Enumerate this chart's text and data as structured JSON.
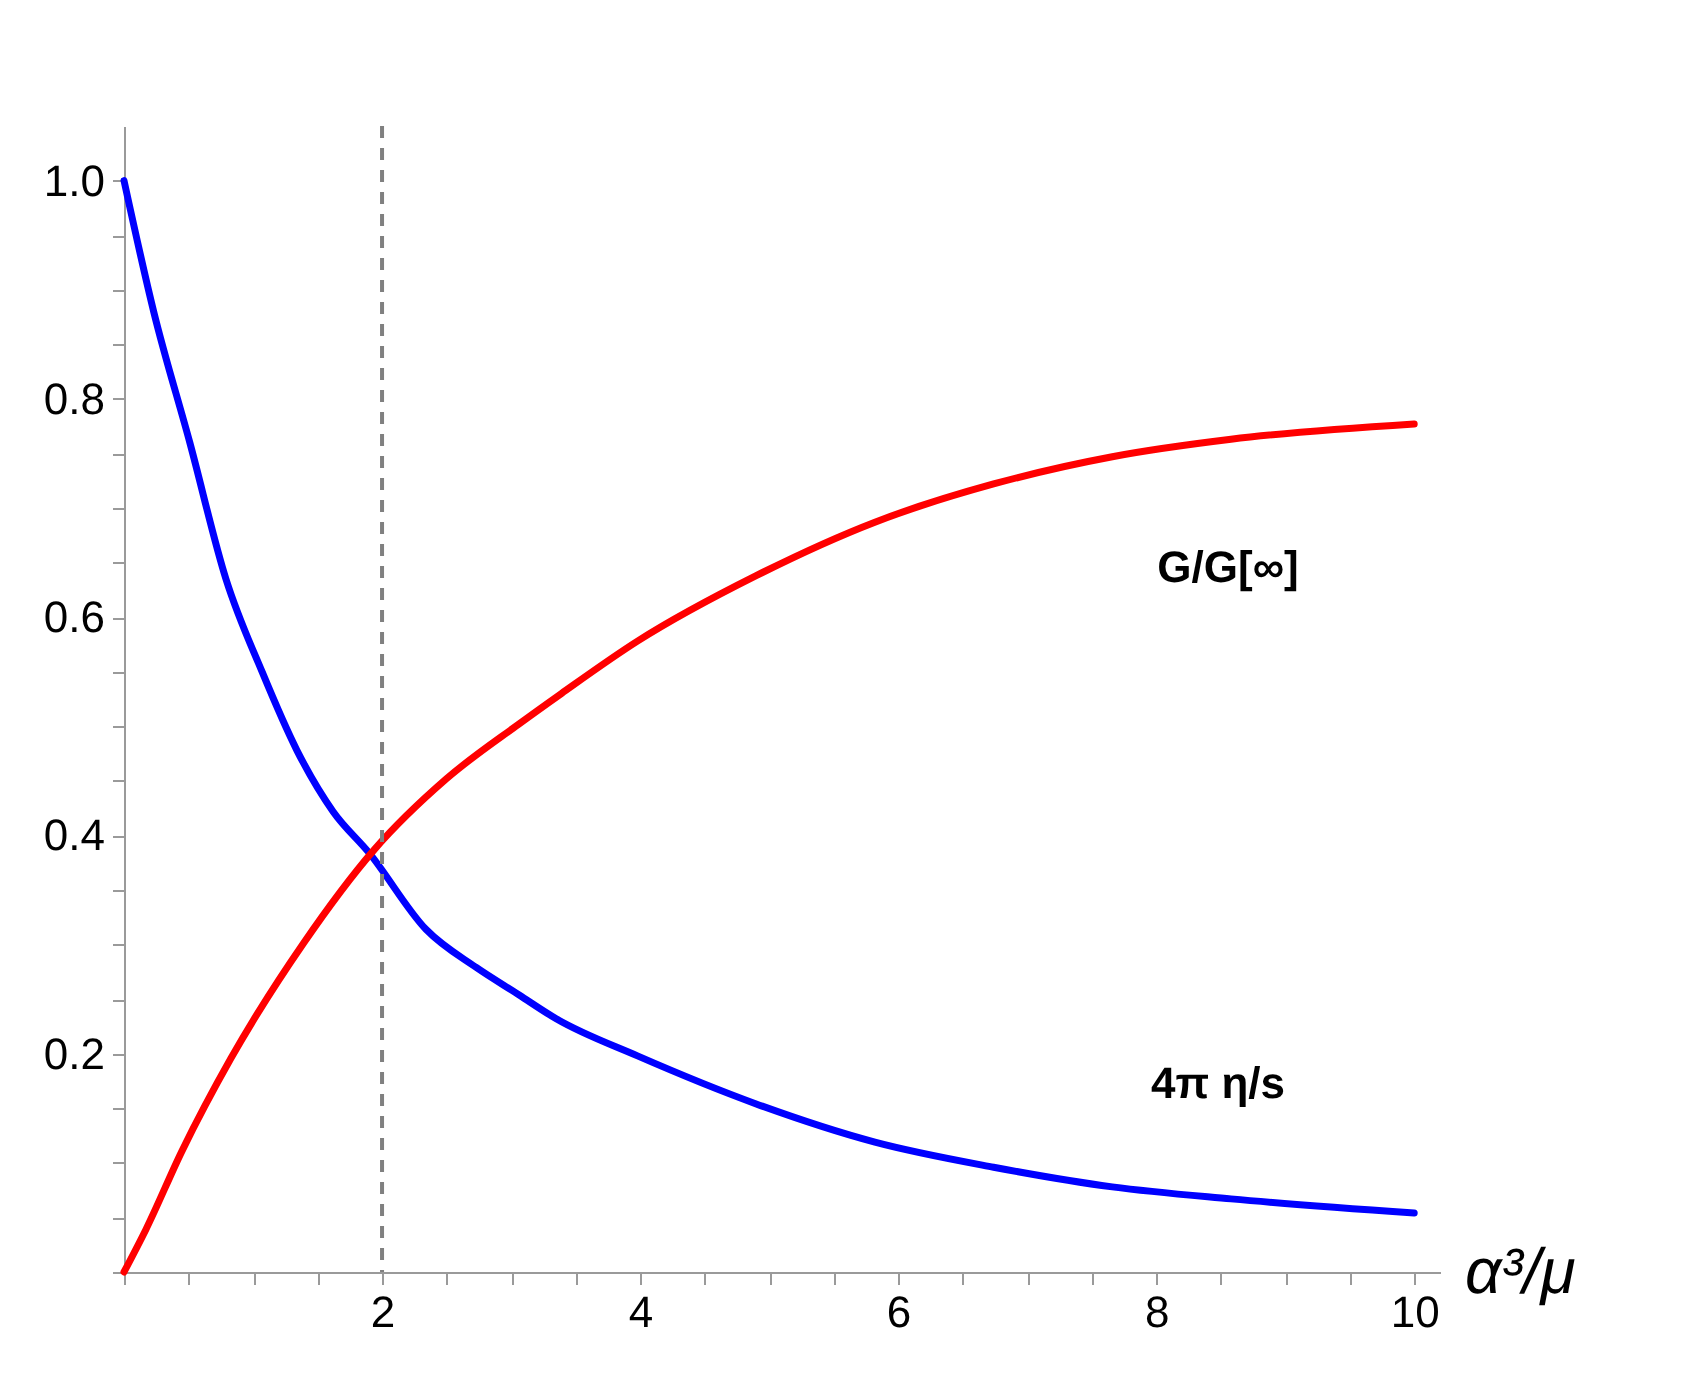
{
  "chart_data": {
    "type": "line",
    "xlabel": "α³/μ",
    "xlim": [
      0,
      10.2
    ],
    "ylim": [
      0,
      1.05
    ],
    "xticks": [
      {
        "value": 0,
        "label": null
      },
      {
        "value": 0.5,
        "label": null
      },
      {
        "value": 1,
        "label": null
      },
      {
        "value": 1.5,
        "label": null
      },
      2,
      {
        "value": 2.5,
        "label": null
      },
      {
        "value": 3,
        "label": null
      },
      {
        "value": 3.5,
        "label": null
      },
      4,
      {
        "value": 4.5,
        "label": null
      },
      {
        "value": 5,
        "label": null
      },
      {
        "value": 5.5,
        "label": null
      },
      6,
      {
        "value": 6.5,
        "label": null
      },
      {
        "value": 7,
        "label": null
      },
      {
        "value": 7.5,
        "label": null
      },
      8,
      {
        "value": 8.5,
        "label": null
      },
      {
        "value": 9,
        "label": null
      },
      {
        "value": 9.5,
        "label": null
      },
      10
    ],
    "yticks": [
      {
        "value": 0,
        "label": null
      },
      {
        "value": 0.05,
        "label": null
      },
      {
        "value": 0.1,
        "label": null
      },
      {
        "value": 0.15,
        "label": null
      },
      0.2,
      {
        "value": 0.25,
        "label": null
      },
      {
        "value": 0.3,
        "label": null
      },
      {
        "value": 0.35,
        "label": null
      },
      0.4,
      {
        "value": 0.45,
        "label": null
      },
      {
        "value": 0.5,
        "label": null
      },
      {
        "value": 0.55,
        "label": null
      },
      0.6,
      {
        "value": 0.65,
        "label": null
      },
      {
        "value": 0.7,
        "label": null
      },
      {
        "value": 0.75,
        "label": null
      },
      0.8,
      {
        "value": 0.85,
        "label": null
      },
      {
        "value": 0.9,
        "label": null
      },
      {
        "value": 0.95,
        "label": null
      },
      {
        "value": 1,
        "label": "1.0"
      }
    ],
    "series": [
      {
        "color": "#0000ff",
        "x": [
          0,
          0.23,
          0.51,
          0.79,
          1.07,
          1.34,
          1.62,
          1.9,
          2.34,
          2.73,
          3.06,
          3.35,
          3.98,
          4.9,
          5.82,
          6.74,
          7.66,
          8.58,
          10
        ],
        "values": [
          1,
          0.88,
          0.76,
          0.635,
          0.55,
          0.478,
          0.422,
          0.384,
          0.314,
          0.279,
          0.254,
          0.232,
          0.198,
          0.154,
          0.119,
          0.096,
          0.078,
          0.067,
          0.054
        ]
      },
      {
        "color": "#ff0000",
        "x": [
          0,
          0.17,
          0.45,
          0.83,
          1.39,
          1.94,
          2.5,
          3.06,
          3.39,
          3.98,
          4.9,
          5.82,
          6.74,
          7.66,
          8.58,
          10
        ],
        "values": [
          0,
          0.039,
          0.111,
          0.196,
          0.301,
          0.387,
          0.452,
          0.502,
          0.53,
          0.578,
          0.638,
          0.687,
          0.722,
          0.747,
          0.763,
          0.777
        ]
      }
    ],
    "ref_lines": [
      {
        "axis": "x",
        "value": 2,
        "color": "#808080",
        "line_style": "dashed"
      }
    ],
    "annotations": [
      "G/G[∞]",
      "4π η/s"
    ]
  }
}
